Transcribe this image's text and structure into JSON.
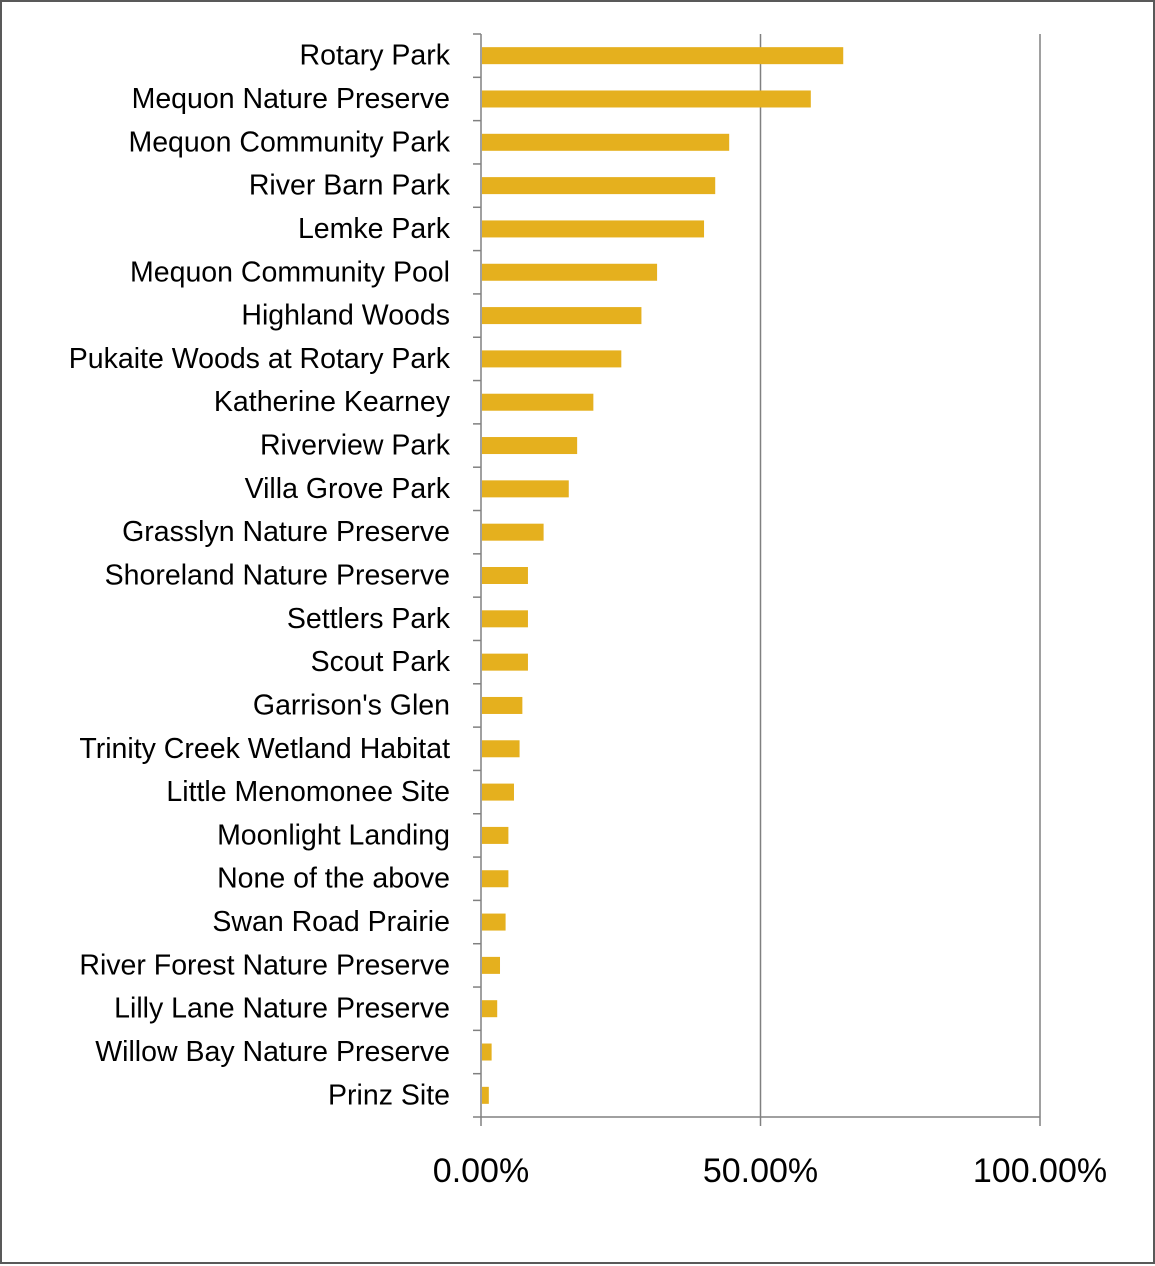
{
  "chart_data": {
    "type": "bar",
    "orientation": "horizontal",
    "categories": [
      "Rotary Park",
      "Mequon Nature Preserve",
      "Mequon Community Park",
      "River Barn Park",
      "Lemke Park",
      "Mequon Community Pool",
      "Highland Woods",
      "Pukaite Woods at Rotary Park",
      "Katherine Kearney",
      "Riverview Park",
      "Villa Grove Park",
      "Grasslyn Nature Preserve",
      "Shoreland Nature Preserve",
      "Settlers Park",
      "Scout Park",
      "Garrison's Glen",
      "Trinity Creek Wetland Habitat",
      "Little Menomonee Site",
      "Moonlight Landing",
      "None of the above",
      "Swan Road Prairie",
      "River Forest Nature Preserve",
      "Lilly Lane Nature Preserve",
      "Willow Bay Nature Preserve",
      "Prinz Site"
    ],
    "values": [
      64.8,
      59.0,
      44.4,
      41.9,
      39.9,
      31.5,
      28.7,
      25.1,
      20.1,
      17.2,
      15.7,
      11.2,
      8.4,
      8.4,
      8.4,
      7.4,
      6.9,
      5.9,
      4.9,
      4.9,
      4.4,
      3.4,
      2.9,
      1.9,
      1.4
    ],
    "title": "",
    "xlabel": "",
    "ylabel": "",
    "xlim": [
      0,
      100
    ],
    "x_ticks": [
      0,
      50,
      100
    ],
    "x_tick_labels": [
      "0.00%",
      "50.00%",
      "100.00%"
    ],
    "grid": "vertical gridlines at major ticks",
    "legend": "none",
    "bar_color": "#E5B01E",
    "axis_color": "#808080"
  }
}
